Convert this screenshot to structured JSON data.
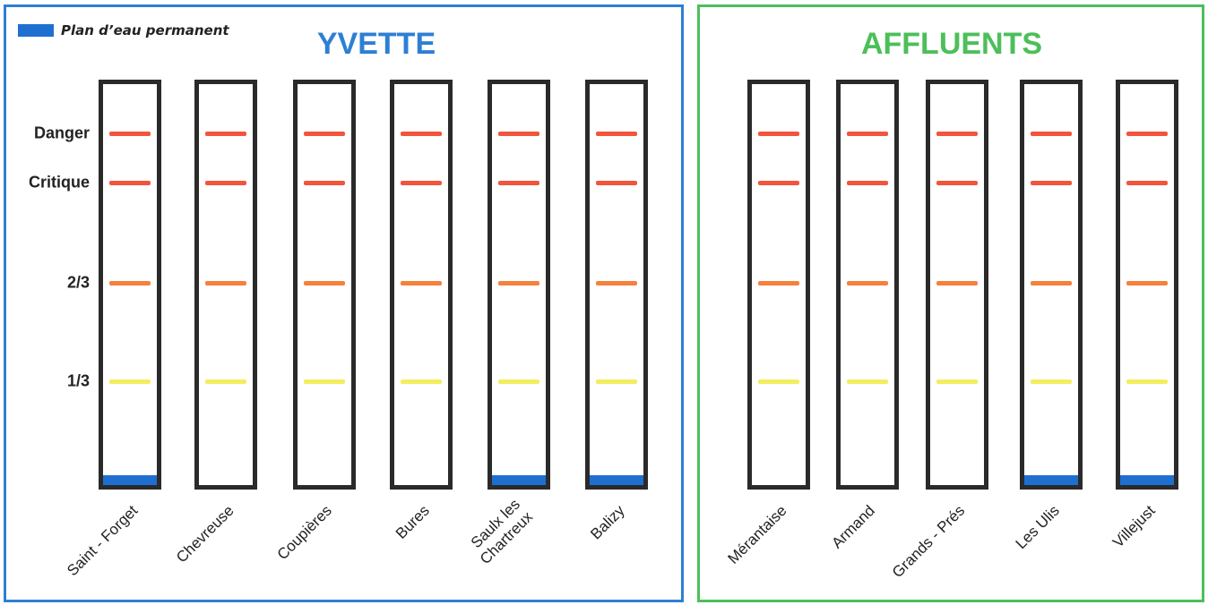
{
  "legend": {
    "label": "Plan d’eau permanent",
    "color": "#1f6fd1"
  },
  "panels": {
    "yvette": {
      "title": "YVETTE",
      "color": "#2e7fd4"
    },
    "affluents": {
      "title": "AFFLUENTS",
      "color": "#4cbf5a"
    }
  },
  "levels": [
    {
      "key": "danger",
      "label": "Danger",
      "fraction": 0.877,
      "color": "#f2543c"
    },
    {
      "key": "critique",
      "label": "Critique",
      "fraction": 0.755,
      "color": "#f2543c"
    },
    {
      "key": "deux-tiers",
      "label": "2/3",
      "fraction": 0.505,
      "color": "#f5813c"
    },
    {
      "key": "un-tiers",
      "label": "1/3",
      "fraction": 0.258,
      "color": "#f2ee60"
    }
  ],
  "stations": [
    {
      "name": "Saint - Forget",
      "group": "yvette",
      "permanent_water": true
    },
    {
      "name": "Chevreuse",
      "group": "yvette",
      "permanent_water": false
    },
    {
      "name": "Coupières",
      "group": "yvette",
      "permanent_water": false
    },
    {
      "name": "Bures",
      "group": "yvette",
      "permanent_water": false
    },
    {
      "name": "Saulx les\nChartreux",
      "group": "yvette",
      "permanent_water": true
    },
    {
      "name": "Balizy",
      "group": "yvette",
      "permanent_water": true
    },
    {
      "name": "Mérantaise",
      "group": "affluents",
      "permanent_water": false
    },
    {
      "name": "Armand",
      "group": "affluents",
      "permanent_water": false
    },
    {
      "name": "Grands - Prés",
      "group": "affluents",
      "permanent_water": false
    },
    {
      "name": "Les Ulis",
      "group": "affluents",
      "permanent_water": true
    },
    {
      "name": "Villejust",
      "group": "affluents",
      "permanent_water": true
    }
  ]
}
